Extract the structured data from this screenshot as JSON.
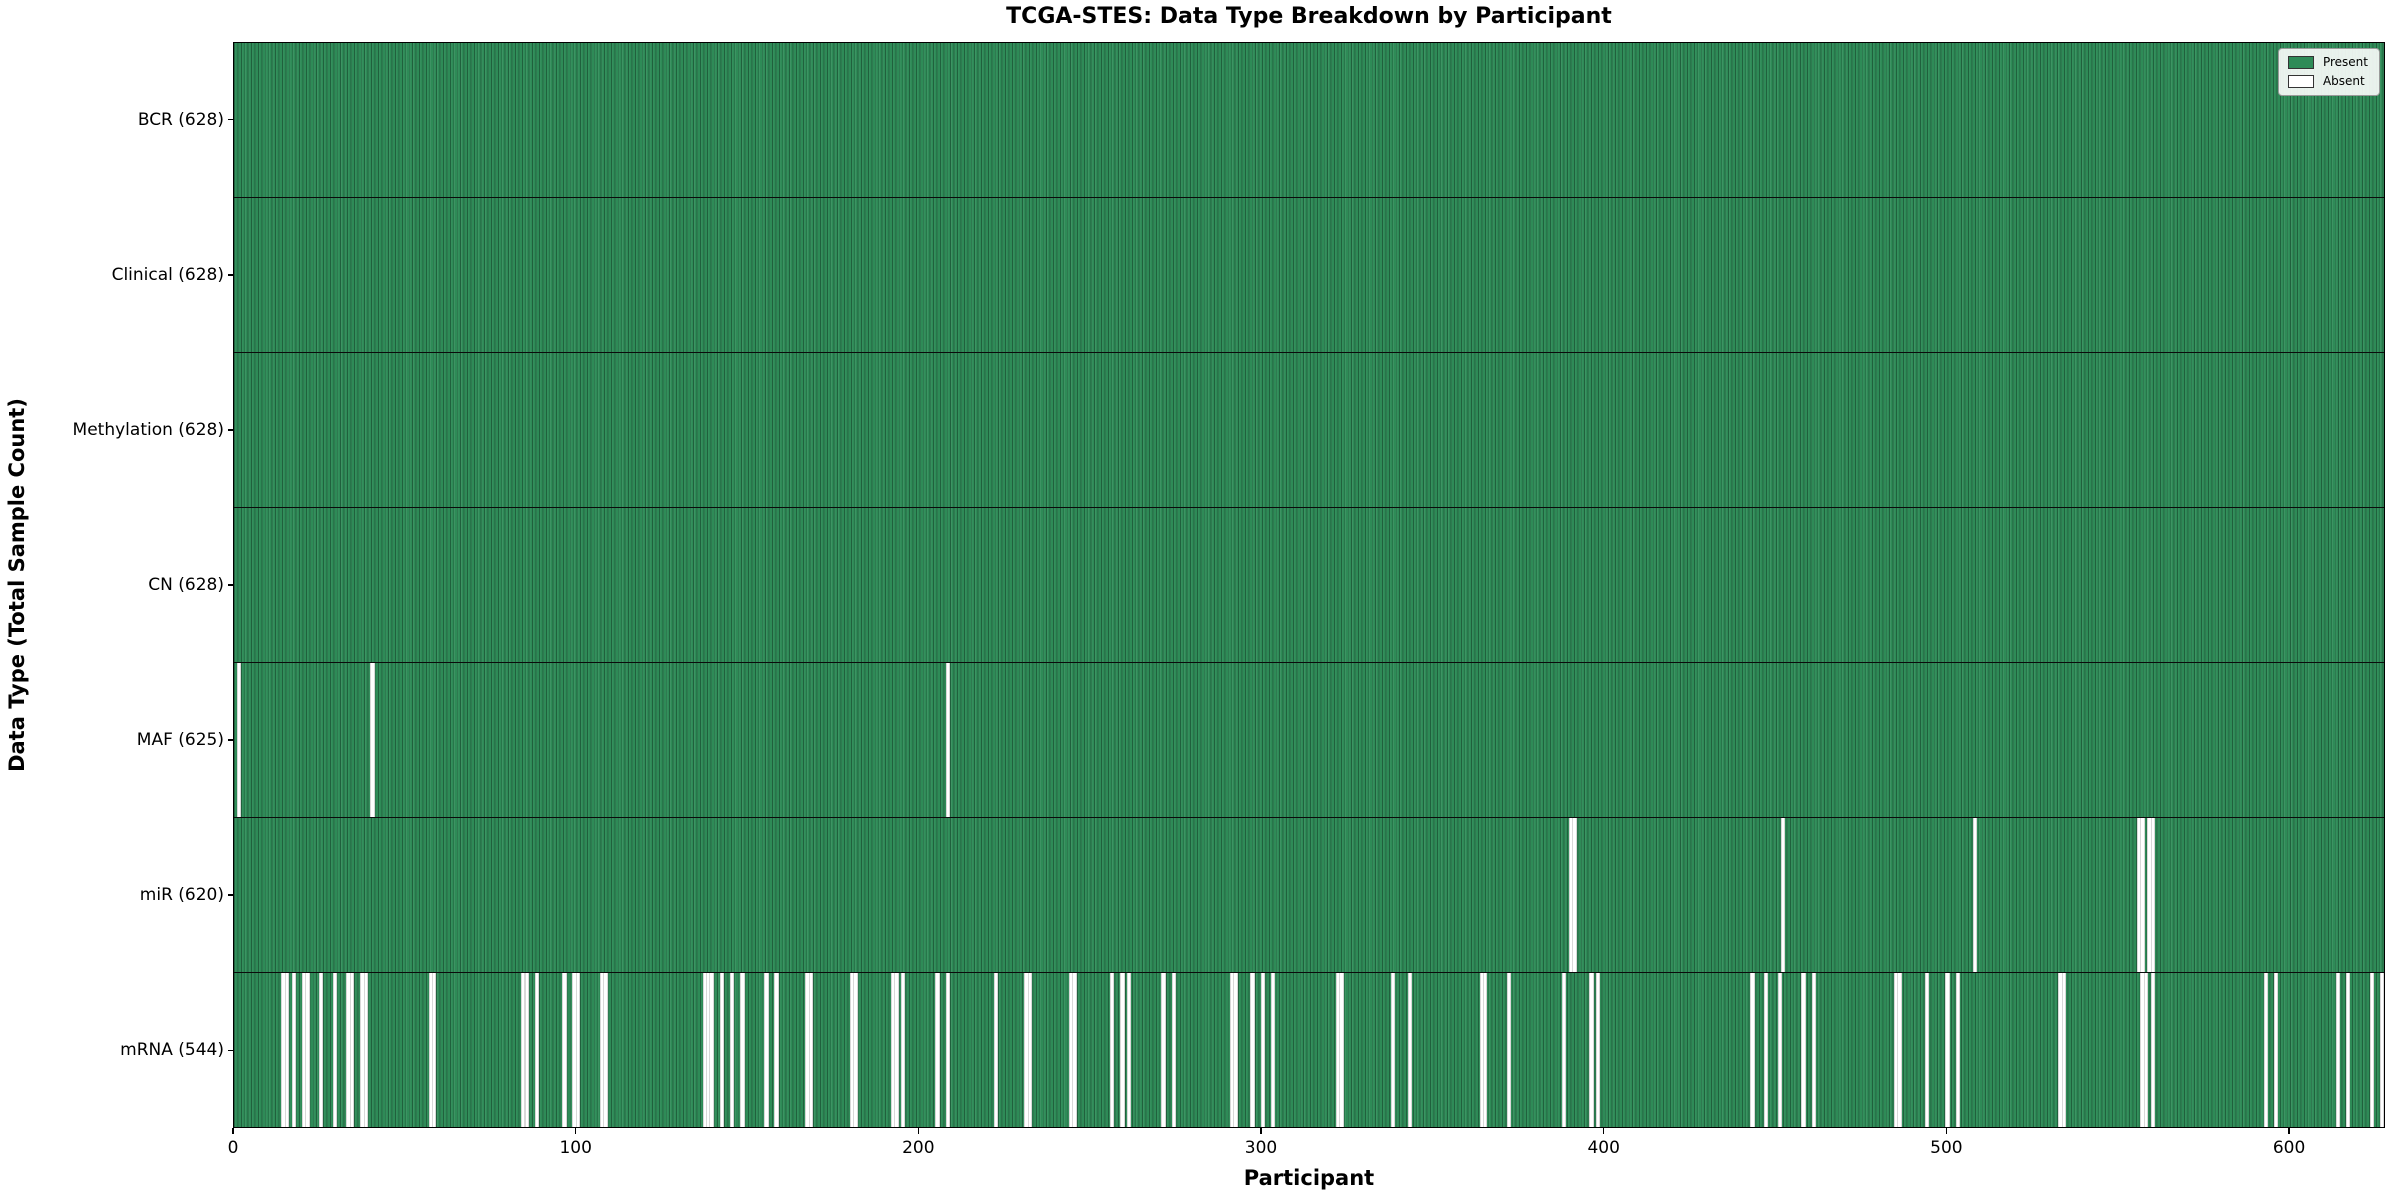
{
  "chart_data": {
    "type": "heatmap",
    "title": "TCGA-STES: Data Type Breakdown by Participant",
    "xlabel": "Participant",
    "ylabel": "Data Type (Total Sample Count)",
    "n_participants": 628,
    "xlim": [
      0,
      628
    ],
    "x_ticks": [
      0,
      100,
      200,
      300,
      400,
      500,
      600
    ],
    "grid": false,
    "legend_position": "upper right",
    "legend": [
      {
        "label": "Present",
        "color": "#2E8B57"
      },
      {
        "label": "Absent",
        "color": "#FFFFFF"
      }
    ],
    "colors": {
      "present": "#2E8B57",
      "absent": "#FFFFFF",
      "bar_edge": "rgba(0,0,0,0.30)",
      "axis": "#000000"
    },
    "rows": [
      {
        "name": "BCR",
        "label": "BCR (628)",
        "present_count": 628,
        "absent_participants": []
      },
      {
        "name": "Clinical",
        "label": "Clinical (628)",
        "present_count": 628,
        "absent_participants": []
      },
      {
        "name": "Methylation",
        "label": "Methylation (628)",
        "present_count": 628,
        "absent_participants": []
      },
      {
        "name": "CN",
        "label": "CN (628)",
        "present_count": 628,
        "absent_participants": []
      },
      {
        "name": "MAF",
        "label": "MAF (625)",
        "present_count": 625,
        "absent_participants": [
          1,
          40,
          208
        ]
      },
      {
        "name": "miR",
        "label": "miR (620)",
        "present_count": 620,
        "absent_participants": [
          390,
          391,
          452,
          508,
          556,
          557,
          559,
          560
        ]
      },
      {
        "name": "mRNA",
        "label": "mRNA (544)",
        "present_count": 544,
        "absent_participants": [
          14,
          15,
          17,
          20,
          21,
          25,
          29,
          33,
          34,
          37,
          38,
          57,
          58,
          84,
          85,
          88,
          96,
          99,
          100,
          107,
          108,
          137,
          138,
          139,
          142,
          145,
          148,
          155,
          158,
          167,
          168,
          180,
          181,
          192,
          193,
          195,
          205,
          208,
          222,
          231,
          232,
          244,
          245,
          256,
          259,
          261,
          271,
          274,
          291,
          292,
          297,
          300,
          303,
          322,
          323,
          338,
          343,
          364,
          365,
          372,
          388,
          396,
          398,
          443,
          447,
          451,
          458,
          461,
          485,
          486,
          494,
          500,
          503,
          533,
          534,
          557,
          558,
          560,
          593,
          596,
          614,
          617,
          624,
          627
        ]
      }
    ]
  }
}
